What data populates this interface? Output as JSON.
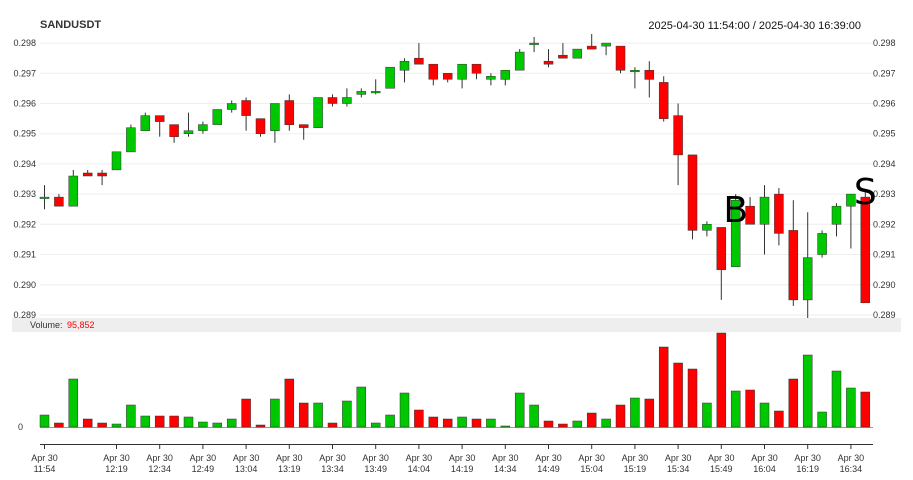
{
  "chart_data": {
    "type": "candlestick",
    "title": "SANDUSDT",
    "range": "2025-04-30 11:54:00 / 2025-04-30 16:39:00",
    "up_color": "#00c800",
    "down_color": "#ff0000",
    "ylim": [
      0.2888,
      0.2984
    ],
    "yticks": [
      "0.298",
      "0.297",
      "0.296",
      "0.295",
      "0.294",
      "0.293",
      "0.292",
      "0.291",
      "0.290",
      "0.289"
    ],
    "volume_label": "Volume:",
    "volume_value": "95,852",
    "volume_color": "#ff0000",
    "volume_zero": "0",
    "xticks": [
      {
        "i": 0,
        "line1": "Apr 30",
        "line2": "11:54"
      },
      {
        "i": 5,
        "line1": "Apr 30",
        "line2": "12:19"
      },
      {
        "i": 8,
        "line1": "Apr 30",
        "line2": "12:34"
      },
      {
        "i": 11,
        "line1": "Apr 30",
        "line2": "12:49"
      },
      {
        "i": 14,
        "line1": "Apr 30",
        "line2": "13:04"
      },
      {
        "i": 17,
        "line1": "Apr 30",
        "line2": "13:19"
      },
      {
        "i": 20,
        "line1": "Apr 30",
        "line2": "13:34"
      },
      {
        "i": 23,
        "line1": "Apr 30",
        "line2": "13:49"
      },
      {
        "i": 26,
        "line1": "Apr 30",
        "line2": "14:04"
      },
      {
        "i": 29,
        "line1": "Apr 30",
        "line2": "14:19"
      },
      {
        "i": 32,
        "line1": "Apr 30",
        "line2": "14:34"
      },
      {
        "i": 35,
        "line1": "Apr 30",
        "line2": "14:49"
      },
      {
        "i": 38,
        "line1": "Apr 30",
        "line2": "15:04"
      },
      {
        "i": 41,
        "line1": "Apr 30",
        "line2": "15:19"
      },
      {
        "i": 44,
        "line1": "Apr 30",
        "line2": "15:34"
      },
      {
        "i": 47,
        "line1": "Apr 30",
        "line2": "15:49"
      },
      {
        "i": 50,
        "line1": "Apr 30",
        "line2": "16:04"
      },
      {
        "i": 53,
        "line1": "Apr 30",
        "line2": "16:19"
      },
      {
        "i": 56,
        "line1": "Apr 30",
        "line2": "16:34"
      }
    ],
    "annotations": [
      {
        "text": "B",
        "i": 48,
        "price": 0.2925
      },
      {
        "text": "S",
        "i": 57,
        "price": 0.2931
      }
    ],
    "candles": [
      {
        "o": 0.2929,
        "h": 0.2933,
        "l": 0.2925,
        "c": 0.2929,
        "v": 6
      },
      {
        "o": 0.2929,
        "h": 0.293,
        "l": 0.2926,
        "c": 0.2926,
        "v": 2
      },
      {
        "o": 0.2926,
        "h": 0.2938,
        "l": 0.2926,
        "c": 0.2936,
        "v": 24
      },
      {
        "o": 0.2937,
        "h": 0.2938,
        "l": 0.2936,
        "c": 0.2936,
        "v": 4
      },
      {
        "o": 0.2937,
        "h": 0.2938,
        "l": 0.2933,
        "c": 0.2936,
        "v": 2
      },
      {
        "o": 0.2938,
        "h": 0.2944,
        "l": 0.2938,
        "c": 0.2944,
        "v": 1.5
      },
      {
        "o": 0.2944,
        "h": 0.2953,
        "l": 0.2944,
        "c": 0.2952,
        "v": 11
      },
      {
        "o": 0.2951,
        "h": 0.2957,
        "l": 0.2951,
        "c": 0.2956,
        "v": 5.5
      },
      {
        "o": 0.2956,
        "h": 0.2956,
        "l": 0.2949,
        "c": 0.2954,
        "v": 5.5
      },
      {
        "o": 0.2953,
        "h": 0.2953,
        "l": 0.2947,
        "c": 0.2949,
        "v": 5.5
      },
      {
        "o": 0.295,
        "h": 0.2957,
        "l": 0.2949,
        "c": 0.2951,
        "v": 5
      },
      {
        "o": 0.2951,
        "h": 0.2954,
        "l": 0.295,
        "c": 0.2953,
        "v": 2.5
      },
      {
        "o": 0.2953,
        "h": 0.2958,
        "l": 0.2953,
        "c": 0.2958,
        "v": 2
      },
      {
        "o": 0.2958,
        "h": 0.2961,
        "l": 0.2957,
        "c": 0.296,
        "v": 4
      },
      {
        "o": 0.2961,
        "h": 0.2962,
        "l": 0.2951,
        "c": 0.2956,
        "v": 14
      },
      {
        "o": 0.2955,
        "h": 0.2955,
        "l": 0.2949,
        "c": 0.295,
        "v": 1
      },
      {
        "o": 0.2951,
        "h": 0.296,
        "l": 0.2947,
        "c": 0.296,
        "v": 14
      },
      {
        "o": 0.2961,
        "h": 0.2963,
        "l": 0.2951,
        "c": 0.2953,
        "v": 24
      },
      {
        "o": 0.2953,
        "h": 0.2953,
        "l": 0.2948,
        "c": 0.2952,
        "v": 12
      },
      {
        "o": 0.2952,
        "h": 0.2962,
        "l": 0.2952,
        "c": 0.2962,
        "v": 12
      },
      {
        "o": 0.2962,
        "h": 0.2963,
        "l": 0.2959,
        "c": 0.296,
        "v": 2
      },
      {
        "o": 0.296,
        "h": 0.2965,
        "l": 0.2959,
        "c": 0.2962,
        "v": 13
      },
      {
        "o": 0.2963,
        "h": 0.2965,
        "l": 0.2962,
        "c": 0.2964,
        "v": 20
      },
      {
        "o": 0.2964,
        "h": 0.2968,
        "l": 0.2963,
        "c": 0.2964,
        "v": 2
      },
      {
        "o": 0.2965,
        "h": 0.2972,
        "l": 0.2965,
        "c": 0.2972,
        "v": 6
      },
      {
        "o": 0.2971,
        "h": 0.2975,
        "l": 0.2967,
        "c": 0.2974,
        "v": 17
      },
      {
        "o": 0.2975,
        "h": 0.298,
        "l": 0.2973,
        "c": 0.2973,
        "v": 8.5
      },
      {
        "o": 0.2973,
        "h": 0.2973,
        "l": 0.2966,
        "c": 0.2968,
        "v": 5
      },
      {
        "o": 0.297,
        "h": 0.297,
        "l": 0.2967,
        "c": 0.2968,
        "v": 4
      },
      {
        "o": 0.2968,
        "h": 0.2973,
        "l": 0.2965,
        "c": 0.2973,
        "v": 5
      },
      {
        "o": 0.2973,
        "h": 0.2973,
        "l": 0.2968,
        "c": 0.297,
        "v": 4
      },
      {
        "o": 0.2968,
        "h": 0.297,
        "l": 0.2966,
        "c": 0.2969,
        "v": 4
      },
      {
        "o": 0.2968,
        "h": 0.2971,
        "l": 0.2966,
        "c": 0.2971,
        "v": 0.5
      },
      {
        "o": 0.2971,
        "h": 0.2978,
        "l": 0.2971,
        "c": 0.2977,
        "v": 17
      },
      {
        "o": 0.298,
        "h": 0.2982,
        "l": 0.2977,
        "c": 0.298,
        "v": 11
      },
      {
        "o": 0.2974,
        "h": 0.2978,
        "l": 0.2972,
        "c": 0.2973,
        "v": 3
      },
      {
        "o": 0.2976,
        "h": 0.298,
        "l": 0.2975,
        "c": 0.2975,
        "v": 1.5
      },
      {
        "o": 0.2975,
        "h": 0.2978,
        "l": 0.2975,
        "c": 0.2978,
        "v": 3
      },
      {
        "o": 0.2979,
        "h": 0.2983,
        "l": 0.2978,
        "c": 0.2978,
        "v": 7
      },
      {
        "o": 0.2979,
        "h": 0.298,
        "l": 0.2976,
        "c": 0.298,
        "v": 4
      },
      {
        "o": 0.2979,
        "h": 0.2979,
        "l": 0.297,
        "c": 0.2971,
        "v": 11
      },
      {
        "o": 0.2971,
        "h": 0.2972,
        "l": 0.2965,
        "c": 0.2971,
        "v": 14.5
      },
      {
        "o": 0.2971,
        "h": 0.2974,
        "l": 0.2962,
        "c": 0.2968,
        "v": 14
      },
      {
        "o": 0.2967,
        "h": 0.2969,
        "l": 0.2954,
        "c": 0.2955,
        "v": 40
      },
      {
        "o": 0.2956,
        "h": 0.296,
        "l": 0.2933,
        "c": 0.2943,
        "v": 32
      },
      {
        "o": 0.2943,
        "h": 0.2943,
        "l": 0.2915,
        "c": 0.2918,
        "v": 29
      },
      {
        "o": 0.2918,
        "h": 0.2921,
        "l": 0.2916,
        "c": 0.292,
        "v": 12
      },
      {
        "o": 0.2919,
        "h": 0.2919,
        "l": 0.2895,
        "c": 0.2905,
        "v": 47
      },
      {
        "o": 0.2906,
        "h": 0.293,
        "l": 0.2906,
        "c": 0.2928,
        "v": 18
      },
      {
        "o": 0.2926,
        "h": 0.2929,
        "l": 0.292,
        "c": 0.292,
        "v": 18.5
      },
      {
        "o": 0.292,
        "h": 0.2933,
        "l": 0.291,
        "c": 0.2929,
        "v": 12
      },
      {
        "o": 0.293,
        "h": 0.2932,
        "l": 0.2913,
        "c": 0.2917,
        "v": 8
      },
      {
        "o": 0.2918,
        "h": 0.2928,
        "l": 0.2893,
        "c": 0.2895,
        "v": 24
      },
      {
        "o": 0.2895,
        "h": 0.2924,
        "l": 0.2889,
        "c": 0.2909,
        "v": 36
      },
      {
        "o": 0.291,
        "h": 0.2918,
        "l": 0.2909,
        "c": 0.2917,
        "v": 7.5
      },
      {
        "o": 0.292,
        "h": 0.2927,
        "l": 0.2916,
        "c": 0.2926,
        "v": 28
      },
      {
        "o": 0.2926,
        "h": 0.293,
        "l": 0.2912,
        "c": 0.293,
        "v": 19.5
      },
      {
        "o": 0.2929,
        "h": 0.2931,
        "l": 0.2894,
        "c": 0.2894,
        "v": 17.5
      }
    ]
  }
}
